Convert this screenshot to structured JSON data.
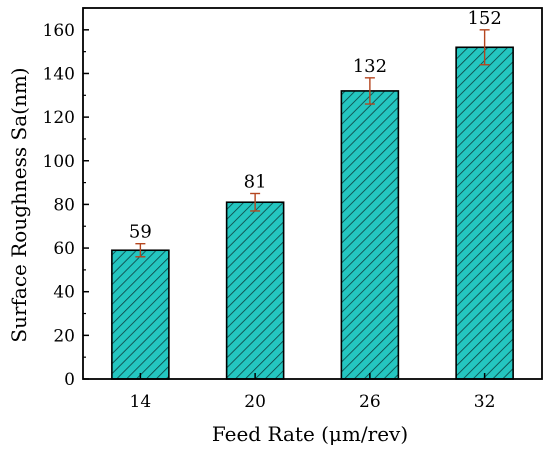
{
  "chart_data": {
    "type": "bar",
    "categories": [
      "14",
      "20",
      "26",
      "32"
    ],
    "values": [
      59,
      81,
      132,
      152
    ],
    "error": [
      3,
      4,
      6,
      8
    ],
    "data_labels": [
      "59",
      "81",
      "132",
      "152"
    ],
    "xlabel": "Feed Rate (μm/rev)",
    "ylabel": "Surface Roughness Sa(nm)",
    "ylim": [
      0,
      170
    ],
    "yticks": [
      "0",
      "20",
      "40",
      "60",
      "80",
      "100",
      "120",
      "140",
      "160"
    ],
    "grid": false,
    "colors": {
      "bar_fill": "#24C6C0",
      "hatch": "#0B3F3F",
      "error_bar": "#B5461F"
    }
  }
}
